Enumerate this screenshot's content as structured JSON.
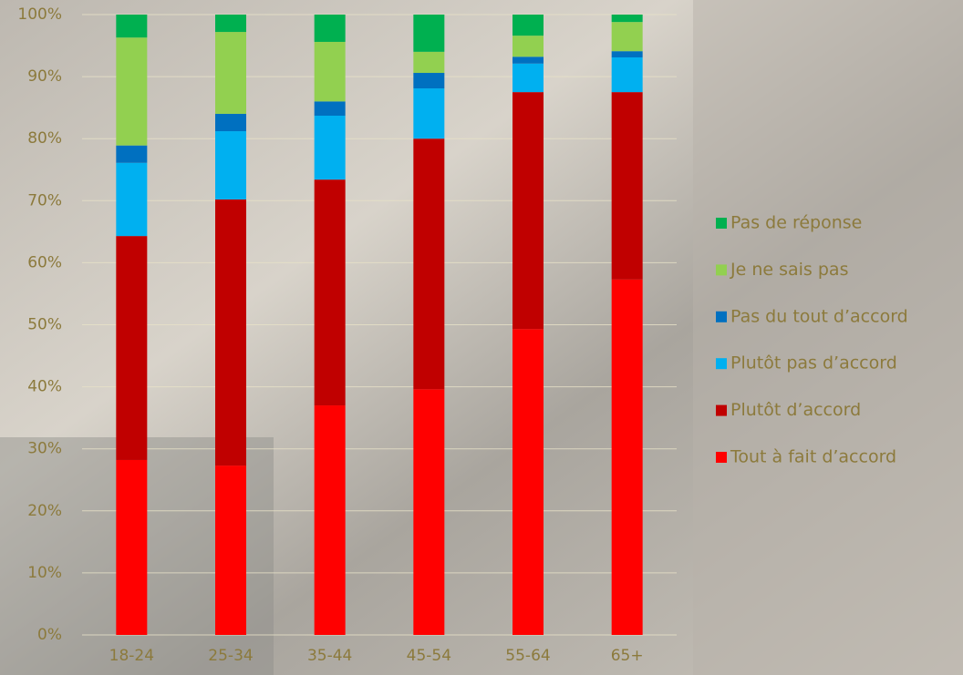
{
  "chart_data": {
    "type": "stacked_bar",
    "categories": [
      "18-24",
      "25-34",
      "35-44",
      "45-54",
      "55-64",
      "65+"
    ],
    "series": [
      {
        "name": "Tout à fait d’accord",
        "color": "#ff0000",
        "values": [
          28.2,
          27.3,
          37.0,
          39.6,
          49.3,
          57.3
        ]
      },
      {
        "name": "Plutôt d’accord",
        "color": "#c00000",
        "values": [
          36.1,
          42.9,
          36.4,
          40.4,
          38.2,
          30.2
        ]
      },
      {
        "name": "Plutôt pas d’accord",
        "color": "#00b0f0",
        "values": [
          11.8,
          11.0,
          10.3,
          8.1,
          4.6,
          5.6
        ]
      },
      {
        "name": "Pas du tout d’accord",
        "color": "#0070c0",
        "values": [
          2.8,
          2.8,
          2.3,
          2.5,
          1.1,
          1.0
        ]
      },
      {
        "name": "Je ne sais pas",
        "color": "#92d050",
        "values": [
          17.4,
          13.2,
          9.6,
          3.4,
          3.4,
          4.7
        ]
      },
      {
        "name": "Pas de réponse",
        "color": "#00b050",
        "values": [
          3.7,
          2.8,
          4.4,
          6.0,
          3.4,
          1.2
        ]
      }
    ],
    "ylim": [
      0,
      100
    ],
    "yticks": [
      {
        "value": 0,
        "label": "0%"
      },
      {
        "value": 10,
        "label": "10%"
      },
      {
        "value": 20,
        "label": "20%"
      },
      {
        "value": 30,
        "label": "30%"
      },
      {
        "value": 40,
        "label": "40%"
      },
      {
        "value": 50,
        "label": "50%"
      },
      {
        "value": 60,
        "label": "60%"
      },
      {
        "value": 70,
        "label": "70%"
      },
      {
        "value": 80,
        "label": "80%"
      },
      {
        "value": 90,
        "label": "90%"
      },
      {
        "value": 100,
        "label": "100%"
      }
    ],
    "grid": true,
    "legend": "right"
  }
}
